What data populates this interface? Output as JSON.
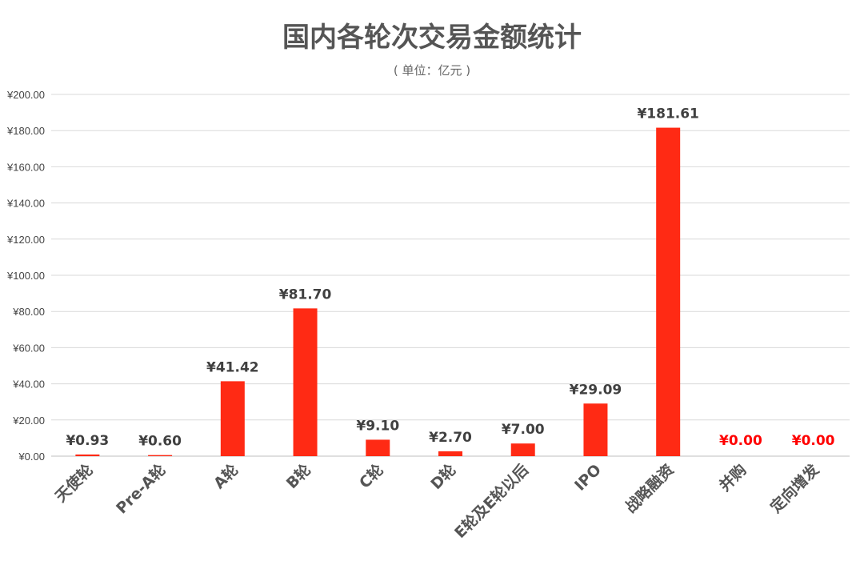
{
  "chart_data": {
    "type": "bar",
    "title": "国内各轮次交易金额统计",
    "subtitle": "( 单位：亿元 )",
    "categories": [
      "天使轮",
      "Pre-A轮",
      "A轮",
      "B轮",
      "C轮",
      "D轮",
      "E轮及E轮以后",
      "IPO",
      "战略融资",
      "并购",
      "定向增发"
    ],
    "values": [
      0.93,
      0.6,
      41.42,
      81.7,
      9.1,
      2.7,
      7.0,
      29.09,
      181.61,
      0.0,
      0.0
    ],
    "data_labels": [
      "¥0.93",
      "¥0.60",
      "¥41.42",
      "¥81.70",
      "¥9.10",
      "¥2.70",
      "¥7.00",
      "¥29.09",
      "¥181.61",
      "¥0.00",
      "¥0.00"
    ],
    "ylim": [
      0,
      200
    ],
    "yticks": [
      0,
      20,
      40,
      60,
      80,
      100,
      120,
      140,
      160,
      180,
      200
    ],
    "ytick_labels": [
      "¥0.00",
      "¥20.00",
      "¥40.00",
      "¥60.00",
      "¥80.00",
      "¥100.00",
      "¥120.00",
      "¥140.00",
      "¥160.00",
      "¥180.00",
      "¥200.00"
    ],
    "xlabel": "",
    "ylabel": "",
    "grid": true,
    "bar_color": "#ff2a14",
    "zero_label_color": "#ff0000"
  }
}
